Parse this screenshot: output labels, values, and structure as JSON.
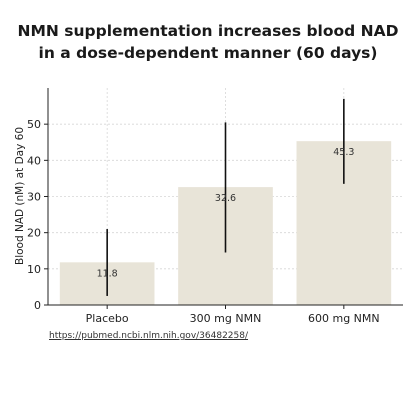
{
  "chart_data": {
    "type": "bar",
    "title": "NMN supplementation increases blood NAD in a dose-dependent manner (60 days)",
    "title_lines": [
      "NMN supplementation increases blood NAD",
      "in a dose-dependent manner (60 days)"
    ],
    "categories": [
      "Placebo",
      "300 mg NMN",
      "600 mg NMN"
    ],
    "values": [
      11.8,
      32.6,
      45.3
    ],
    "value_labels": [
      "11.8",
      "32.6",
      "45.3"
    ],
    "errors": [
      {
        "low": 2.5,
        "high": 21.0
      },
      {
        "low": 14.5,
        "high": 50.5
      },
      {
        "low": 33.5,
        "high": 57.0
      }
    ],
    "xlabel": "",
    "ylabel": "Blood NAD (nM) at Day 60",
    "ylim": [
      0,
      60
    ],
    "yticks": [
      0,
      10,
      20,
      30,
      40,
      50
    ],
    "grid": true,
    "colors": {
      "bar": "#e8e4d8",
      "error": "#111111",
      "grid": "#d6d6d6",
      "axis": "#222222",
      "text": "#222222"
    }
  },
  "source": {
    "url": "https://pubmed.ncbi.nlm.nih.gov/36482258/"
  }
}
